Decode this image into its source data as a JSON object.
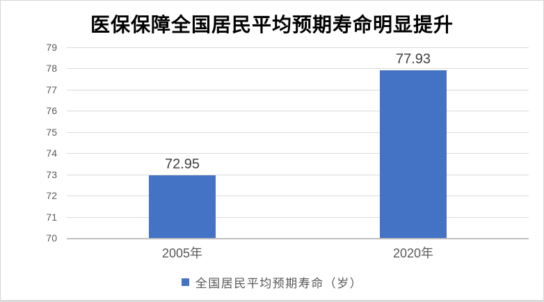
{
  "chart_data": {
    "type": "bar",
    "title": "医保保障全国居民平均预期寿命明显提升",
    "categories": [
      "2005年",
      "2020年"
    ],
    "values": [
      72.95,
      77.93
    ],
    "value_labels": [
      "72.95",
      "77.93"
    ],
    "legend": "全国居民平均预期寿命（岁）",
    "legend_position": "bottom-center",
    "xlabel": "",
    "ylabel": "",
    "ylim": [
      70,
      79
    ],
    "yticks": [
      70,
      71,
      72,
      73,
      74,
      75,
      76,
      77,
      78,
      79
    ],
    "grid": "horizontal",
    "colors": {
      "bar": "#4472c4",
      "gridline": "#d9d9d9",
      "axis_line": "#bfbfbf",
      "tick_text": "#595959",
      "value_label_text": "#404040",
      "title_text": "#000000",
      "frame_border": "#d9d9d9"
    }
  }
}
